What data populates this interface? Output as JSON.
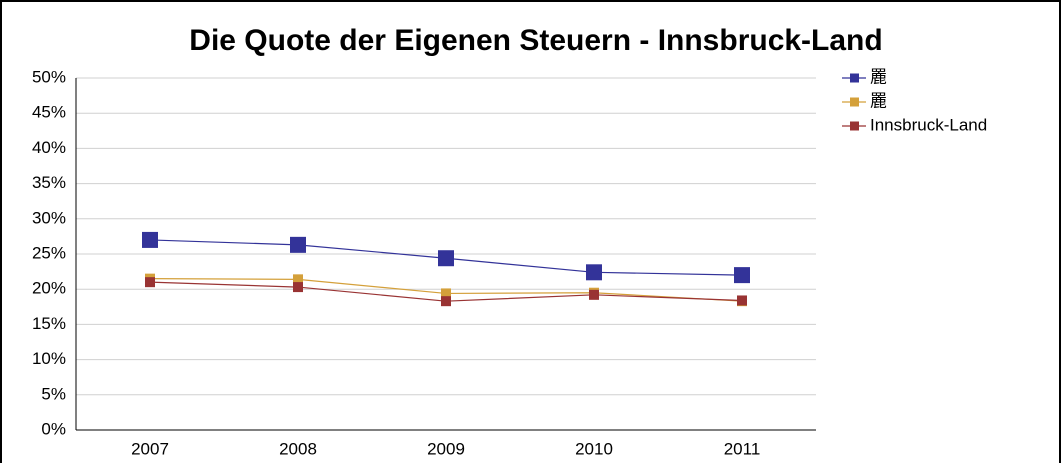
{
  "chart_data": {
    "type": "line",
    "title": "Die Quote der Eigenen Steuern - Innsbruck-Land",
    "categories": [
      "2007",
      "2008",
      "2009",
      "2010",
      "2011"
    ],
    "series": [
      {
        "name": "䍡",
        "color": "#333399",
        "values": [
          27,
          26.3,
          24.4,
          22.4,
          22
        ]
      },
      {
        "name": "䍡",
        "color": "#d4a03a",
        "values": [
          21.5,
          21.4,
          19.4,
          19.5,
          18.3
        ]
      },
      {
        "name": "Innsbruck-Land",
        "color": "#993333",
        "values": [
          21,
          20.3,
          18.3,
          19.2,
          18.4
        ]
      }
    ],
    "ylim": [
      0,
      50
    ],
    "yticks": [
      {
        "value": 0,
        "label": "0%"
      },
      {
        "value": 5,
        "label": "5%"
      },
      {
        "value": 10,
        "label": "10%"
      },
      {
        "value": 15,
        "label": "15%"
      },
      {
        "value": 20,
        "label": "20%"
      },
      {
        "value": 25,
        "label": "25%"
      },
      {
        "value": 30,
        "label": "30%"
      },
      {
        "value": 35,
        "label": "35%"
      },
      {
        "value": 40,
        "label": "40%"
      },
      {
        "value": 45,
        "label": "45%"
      },
      {
        "value": 50,
        "label": "50%"
      }
    ],
    "grid": true,
    "legend": "right"
  }
}
